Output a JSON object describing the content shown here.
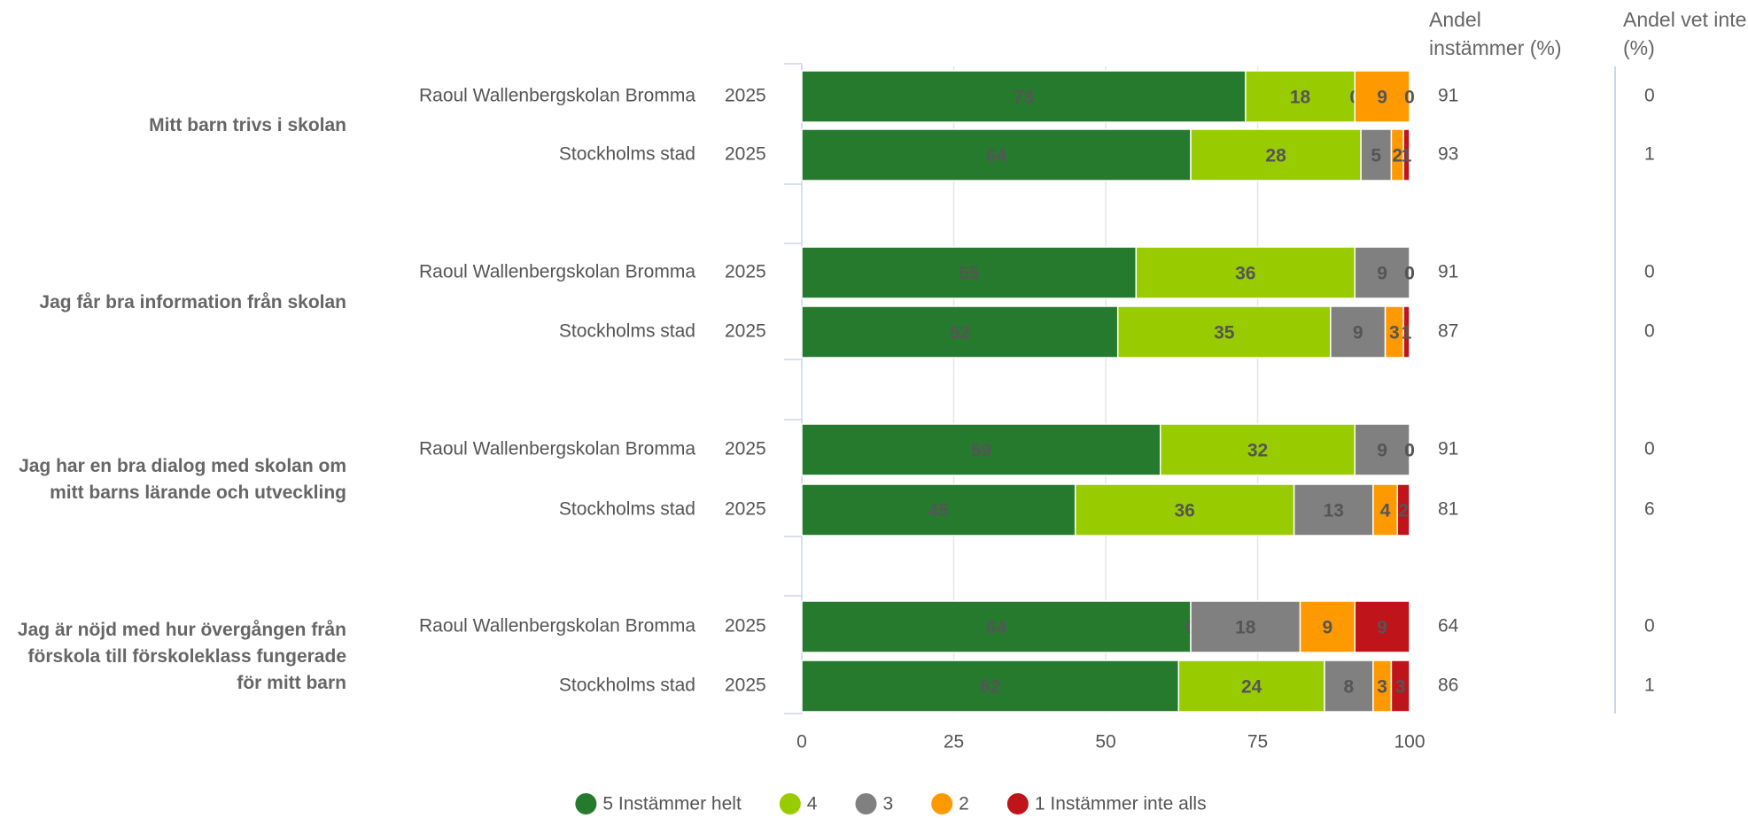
{
  "chart_data": {
    "type": "stacked-bar",
    "orientation": "horizontal",
    "questions": [
      "Mitt barn trivs i skolan",
      "Jag får bra information från skolan",
      "Jag har en bra dialog med skolan om mitt barns lärande och utveckling",
      "Jag är nöjd med hur övergången från förskola till förskoleklass fungerade för mitt barn"
    ],
    "categories": [
      "Raoul Wallenbergskolan Bromma",
      "Stockholms stad",
      "Raoul Wallenbergskolan Bromma",
      "Stockholms stad",
      "Raoul Wallenbergskolan Bromma",
      "Stockholms stad",
      "Raoul Wallenbergskolan Bromma",
      "Stockholms stad"
    ],
    "years": [
      "2025",
      "2025",
      "2025",
      "2025",
      "2025",
      "2025",
      "2025",
      "2025"
    ],
    "series": [
      {
        "name": "5 Instämmer helt",
        "color": "#267a2e",
        "label_color": "#ffffff",
        "values": [
          73,
          64,
          55,
          52,
          59,
          45,
          64,
          62
        ]
      },
      {
        "name": "4",
        "color": "#99cc00",
        "label_color": "#000000",
        "values": [
          18,
          28,
          36,
          35,
          32,
          36,
          0,
          24
        ]
      },
      {
        "name": "3",
        "color": "#808080",
        "label_color": "#000000",
        "values": [
          0,
          5,
          9,
          9,
          9,
          13,
          18,
          8
        ]
      },
      {
        "name": "2",
        "color": "#ff9900",
        "label_color": "#000000",
        "values": [
          9,
          2,
          0,
          3,
          0,
          4,
          9,
          3
        ]
      },
      {
        "name": "1 Instämmer inte alls",
        "color": "#c0141b",
        "label_color": "#ffffff",
        "values": [
          0,
          1,
          0,
          1,
          0,
          2,
          9,
          3
        ]
      }
    ],
    "xlim": [
      0,
      100
    ],
    "xticks": [
      0,
      25,
      50,
      75,
      100
    ],
    "grid": true,
    "columns": [
      {
        "title": "Andel instämmer (%)",
        "values": [
          91,
          93,
          91,
          87,
          91,
          81,
          64,
          86
        ]
      },
      {
        "title": "Andel vet inte (%)",
        "values": [
          0,
          1,
          0,
          0,
          0,
          6,
          0,
          1
        ]
      }
    ]
  }
}
